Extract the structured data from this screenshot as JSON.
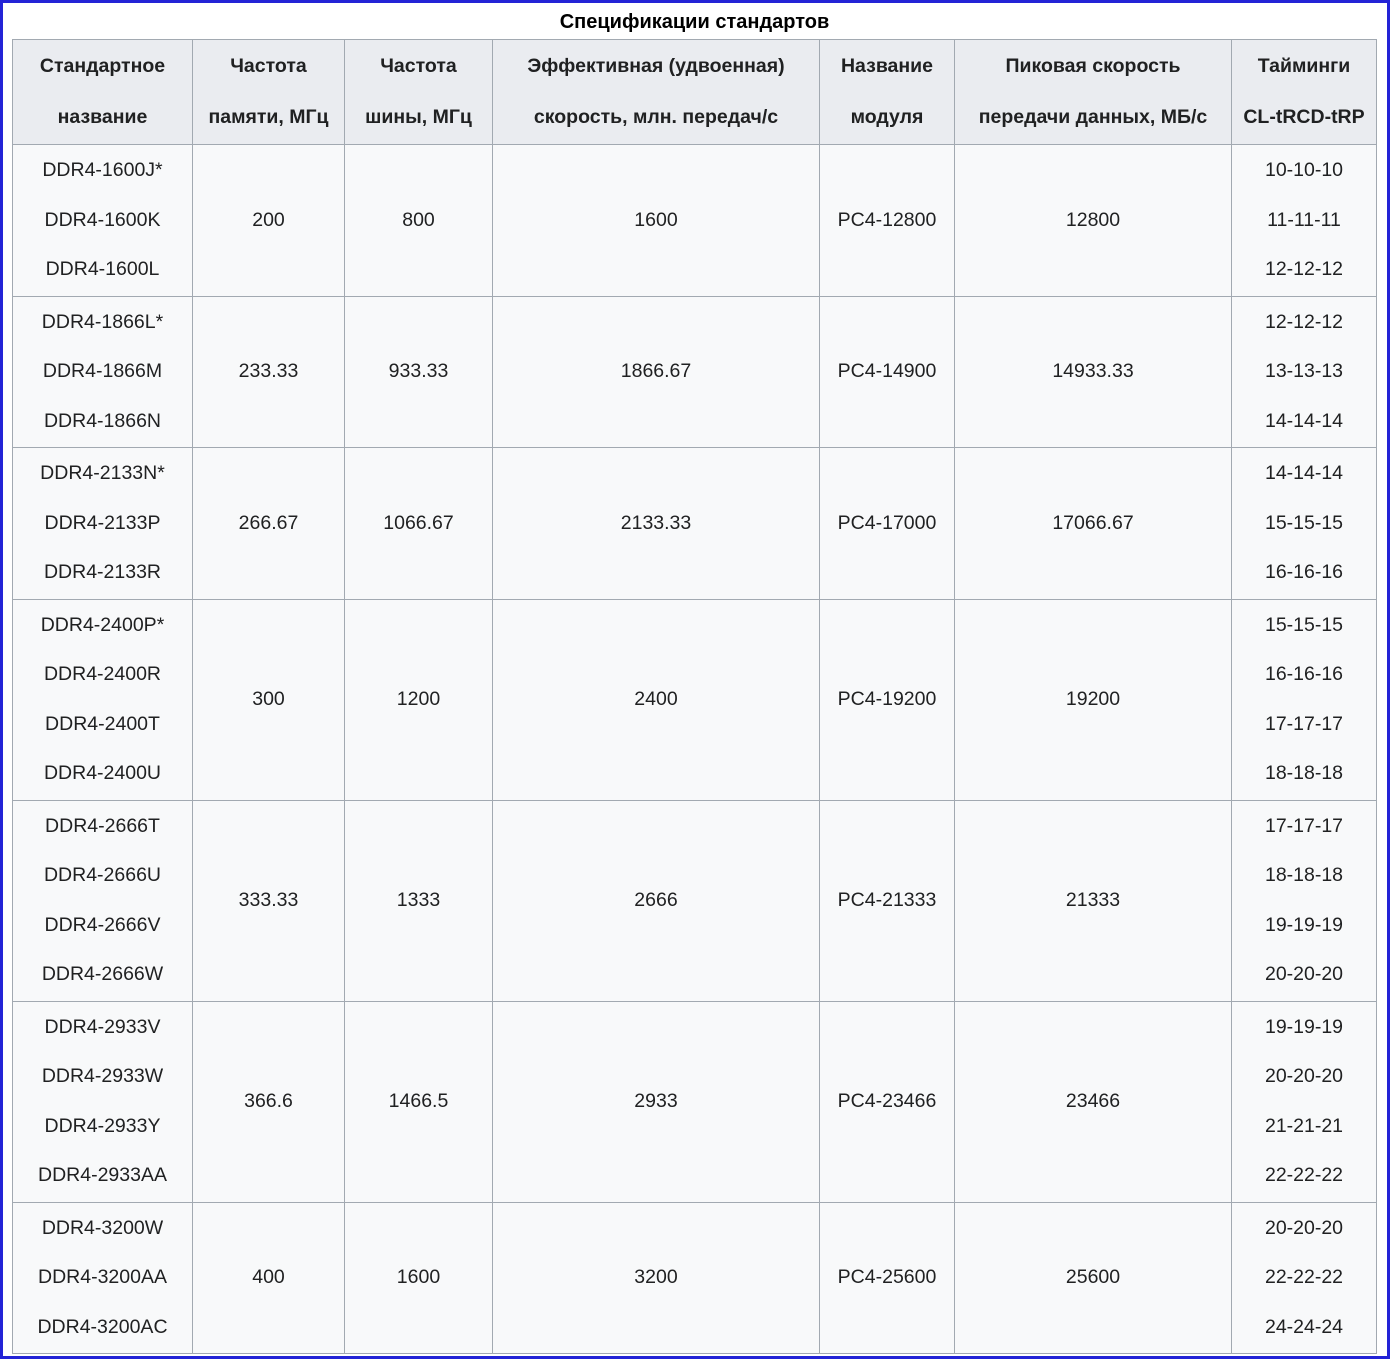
{
  "colors": {
    "frame": "#2323d6",
    "grid": "#a2a9b1",
    "header_bg": "#eaecf0",
    "cell_bg": "#f8f9fa",
    "text": "#202122"
  },
  "table": {
    "caption": "Спецификации стандартов",
    "headers": [
      [
        "Стандартное",
        "название"
      ],
      [
        "Частота",
        "памяти, МГц"
      ],
      [
        "Частота",
        "шины, МГц"
      ],
      [
        "Эффективная (удвоенная)",
        "скорость, млн. передач/с"
      ],
      [
        "Название",
        "модуля"
      ],
      [
        "Пиковая скорость",
        "передачи данных, МБ/с"
      ],
      [
        "Тайминги",
        "CL-tRCD-tRP"
      ]
    ],
    "rows": [
      {
        "standard_names": [
          "DDR4-1600J*",
          "DDR4-1600K",
          "DDR4-1600L"
        ],
        "memory_clock_mhz": "200",
        "bus_clock_mhz": "800",
        "effective_rate_mt_s": "1600",
        "module_name": "PC4-12800",
        "peak_transfer_mb_s": "12800",
        "timings": [
          "10-10-10",
          "11-11-11",
          "12-12-12"
        ]
      },
      {
        "standard_names": [
          "DDR4-1866L*",
          "DDR4-1866M",
          "DDR4-1866N"
        ],
        "memory_clock_mhz": "233.33",
        "bus_clock_mhz": "933.33",
        "effective_rate_mt_s": "1866.67",
        "module_name": "PC4-14900",
        "peak_transfer_mb_s": "14933.33",
        "timings": [
          "12-12-12",
          "13-13-13",
          "14-14-14"
        ]
      },
      {
        "standard_names": [
          "DDR4-2133N*",
          "DDR4-2133P",
          "DDR4-2133R"
        ],
        "memory_clock_mhz": "266.67",
        "bus_clock_mhz": "1066.67",
        "effective_rate_mt_s": "2133.33",
        "module_name": "PC4-17000",
        "peak_transfer_mb_s": "17066.67",
        "timings": [
          "14-14-14",
          "15-15-15",
          "16-16-16"
        ]
      },
      {
        "standard_names": [
          "DDR4-2400P*",
          "DDR4-2400R",
          "DDR4-2400T",
          "DDR4-2400U"
        ],
        "memory_clock_mhz": "300",
        "bus_clock_mhz": "1200",
        "effective_rate_mt_s": "2400",
        "module_name": "PC4-19200",
        "peak_transfer_mb_s": "19200",
        "timings": [
          "15-15-15",
          "16-16-16",
          "17-17-17",
          "18-18-18"
        ]
      },
      {
        "standard_names": [
          "DDR4-2666T",
          "DDR4-2666U",
          "DDR4-2666V",
          "DDR4-2666W"
        ],
        "memory_clock_mhz": "333.33",
        "bus_clock_mhz": "1333",
        "effective_rate_mt_s": "2666",
        "module_name": "PC4-21333",
        "peak_transfer_mb_s": "21333",
        "timings": [
          "17-17-17",
          "18-18-18",
          "19-19-19",
          "20-20-20"
        ]
      },
      {
        "standard_names": [
          "DDR4-2933V",
          "DDR4-2933W",
          "DDR4-2933Y",
          "DDR4-2933AA"
        ],
        "memory_clock_mhz": "366.6",
        "bus_clock_mhz": "1466.5",
        "effective_rate_mt_s": "2933",
        "module_name": "PC4-23466",
        "peak_transfer_mb_s": "23466",
        "timings": [
          "19-19-19",
          "20-20-20",
          "21-21-21",
          "22-22-22"
        ]
      },
      {
        "standard_names": [
          "DDR4-3200W",
          "DDR4-3200AA",
          "DDR4-3200AC"
        ],
        "memory_clock_mhz": "400",
        "bus_clock_mhz": "1600",
        "effective_rate_mt_s": "3200",
        "module_name": "PC4-25600",
        "peak_transfer_mb_s": "25600",
        "timings": [
          "20-20-20",
          "22-22-22",
          "24-24-24"
        ]
      }
    ]
  }
}
